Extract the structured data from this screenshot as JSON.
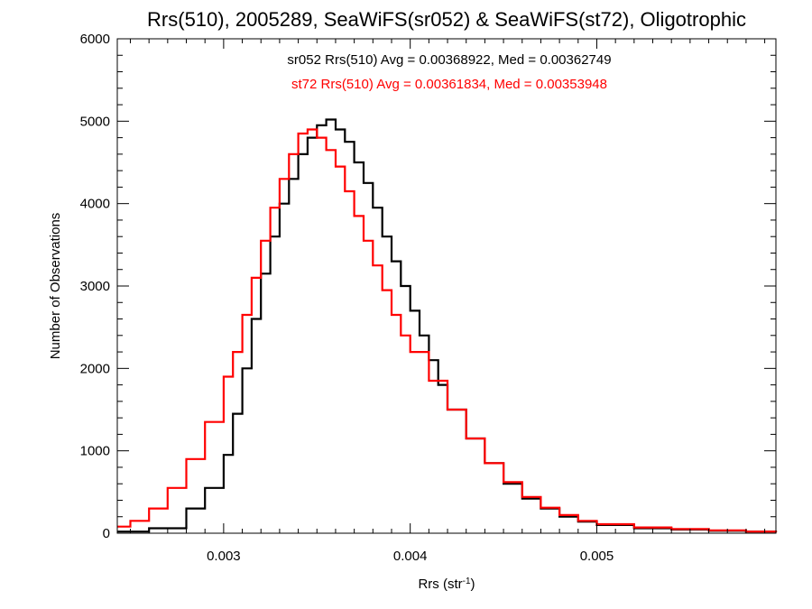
{
  "chart_data": {
    "type": "line",
    "title": "Rrs(510), 2005289, SeaWiFS(sr052) & SeaWiFS(st72), Oligotrophic",
    "xlabel": {
      "text": "Rrs (str",
      "sup": "-1",
      "suffix": ")"
    },
    "ylabel": "Number of Observations",
    "xlim": [
      0.00243,
      0.00596
    ],
    "ylim": [
      0,
      6000
    ],
    "grid": false,
    "step": true,
    "x_ticks": [
      {
        "value": 0.003,
        "label": "0.003"
      },
      {
        "value": 0.004,
        "label": "0.004"
      },
      {
        "value": 0.005,
        "label": "0.005"
      }
    ],
    "x_minor_step": 0.0001,
    "y_ticks": [
      {
        "value": 0,
        "label": "0"
      },
      {
        "value": 1000,
        "label": "1000"
      },
      {
        "value": 2000,
        "label": "2000"
      },
      {
        "value": 3000,
        "label": "3000"
      },
      {
        "value": 4000,
        "label": "4000"
      },
      {
        "value": 5000,
        "label": "5000"
      },
      {
        "value": 6000,
        "label": "6000"
      }
    ],
    "y_minor_step": 200,
    "annotations": [
      {
        "text": "sr052 Rrs(510) Avg = 0.00368922, Med = 0.00362749",
        "color": "#000000"
      },
      {
        "text": "st72 Rrs(510) Avg = 0.00361834, Med = 0.00353948",
        "color": "#ff0000"
      }
    ],
    "series": [
      {
        "color": "#000000",
        "x": [
          0.00243,
          0.0026,
          0.0028,
          0.0029,
          0.003,
          0.00305,
          0.0031,
          0.00315,
          0.0032,
          0.00325,
          0.0033,
          0.00335,
          0.0034,
          0.00345,
          0.0035,
          0.00355,
          0.0036,
          0.00365,
          0.0037,
          0.00375,
          0.0038,
          0.00385,
          0.0039,
          0.00395,
          0.004,
          0.00405,
          0.0041,
          0.00415,
          0.0042,
          0.0043,
          0.0044,
          0.0045,
          0.0046,
          0.0047,
          0.0048,
          0.0049,
          0.005,
          0.0052,
          0.0054,
          0.0056,
          0.0058,
          0.00596
        ],
        "y": [
          20,
          60,
          300,
          550,
          950,
          1450,
          2000,
          2600,
          3150,
          3600,
          4000,
          4300,
          4600,
          4800,
          4950,
          5020,
          4900,
          4750,
          4500,
          4250,
          3950,
          3600,
          3300,
          3000,
          2700,
          2400,
          2100,
          1800,
          1500,
          1150,
          850,
          600,
          420,
          300,
          200,
          140,
          100,
          60,
          45,
          30,
          20,
          10
        ]
      },
      {
        "color": "#ff0000",
        "x": [
          0.00243,
          0.0025,
          0.0026,
          0.0027,
          0.0028,
          0.0029,
          0.003,
          0.00305,
          0.0031,
          0.00315,
          0.0032,
          0.00325,
          0.0033,
          0.00335,
          0.0034,
          0.00345,
          0.0035,
          0.00355,
          0.0036,
          0.00365,
          0.0037,
          0.00375,
          0.0038,
          0.00385,
          0.0039,
          0.00395,
          0.004,
          0.0041,
          0.0042,
          0.0043,
          0.0044,
          0.0045,
          0.0046,
          0.0047,
          0.0048,
          0.0049,
          0.005,
          0.0052,
          0.0054,
          0.0056,
          0.0058,
          0.00596
        ],
        "y": [
          80,
          150,
          300,
          550,
          900,
          1350,
          1900,
          2200,
          2650,
          3100,
          3550,
          3950,
          4300,
          4600,
          4850,
          4900,
          4800,
          4650,
          4450,
          4150,
          3850,
          3550,
          3250,
          2950,
          2650,
          2400,
          2200,
          1850,
          1500,
          1150,
          850,
          620,
          440,
          310,
          220,
          150,
          110,
          70,
          50,
          35,
          20,
          10
        ]
      }
    ]
  }
}
